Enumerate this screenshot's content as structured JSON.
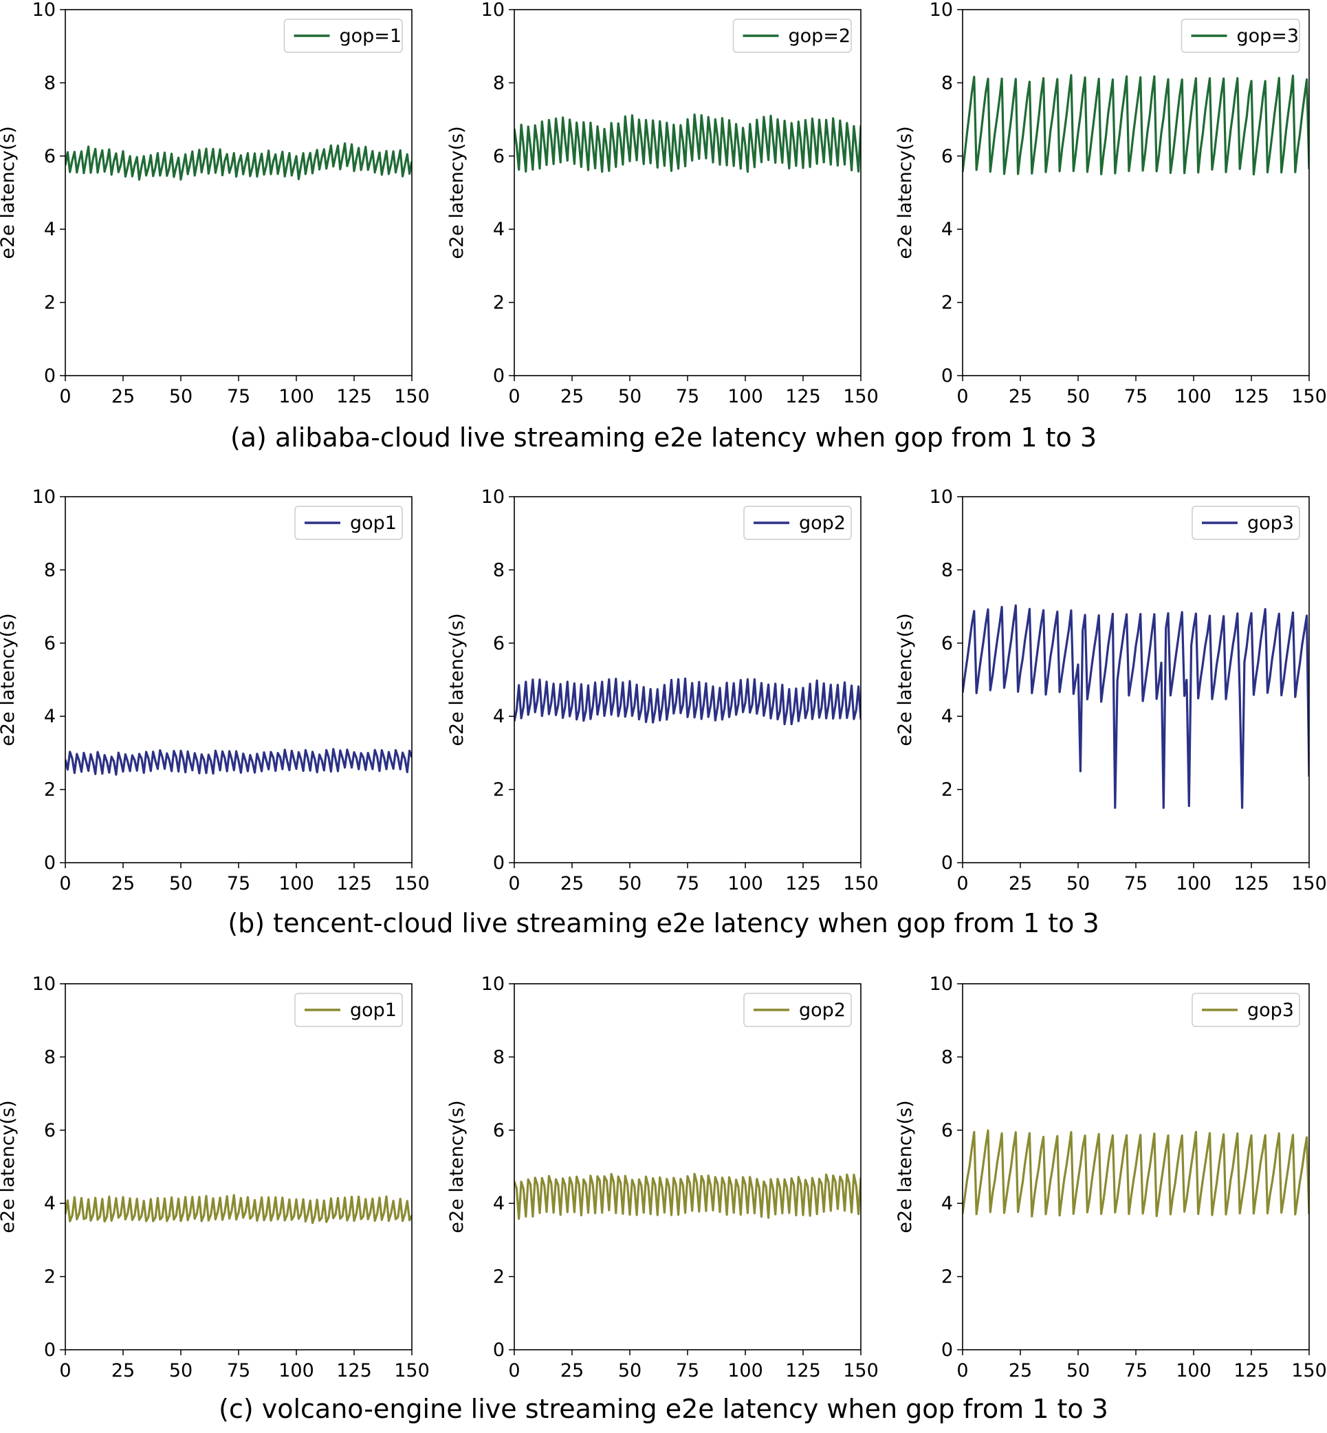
{
  "figure": {
    "captions": [
      "(a) alibaba-cloud live streaming e2e latency when gop from 1 to 3",
      "(b) tencent-cloud live streaming e2e latency when gop from 1 to 3",
      "(c) volcano-engine live streaming e2e latency when gop from 1 to 3"
    ]
  },
  "chart_data": [
    {
      "type": "line",
      "group": "a",
      "title": "",
      "legend": "gop=1",
      "color": "#1f6b35",
      "ylabel": "e2e latency(s)",
      "xlabel": "",
      "xlim": [
        0,
        150
      ],
      "ylim": [
        0,
        10
      ],
      "xticks": [
        0,
        25,
        50,
        75,
        100,
        125,
        150
      ],
      "yticks": [
        0,
        2,
        4,
        6,
        8,
        10
      ],
      "legend_loc": "upper right",
      "x": [
        0,
        10,
        20,
        30,
        40,
        50,
        60,
        70,
        80,
        90,
        100,
        110,
        120,
        130,
        140,
        150
      ],
      "y_mean": [
        5.8,
        5.9,
        5.85,
        5.7,
        5.75,
        5.7,
        5.9,
        5.8,
        5.75,
        5.8,
        5.7,
        5.9,
        6.0,
        5.9,
        5.8,
        5.8
      ],
      "amplitude": 0.35,
      "period": 3
    },
    {
      "type": "line",
      "group": "a",
      "title": "",
      "legend": "gop=2",
      "color": "#1f6b35",
      "ylabel": "e2e latency(s)",
      "xlabel": "",
      "xlim": [
        0,
        150
      ],
      "ylim": [
        0,
        10
      ],
      "xticks": [
        0,
        25,
        50,
        75,
        100,
        125,
        150
      ],
      "yticks": [
        0,
        2,
        4,
        6,
        8,
        10
      ],
      "legend_loc": "upper right",
      "x": [
        0,
        10,
        20,
        30,
        40,
        50,
        60,
        70,
        80,
        90,
        100,
        110,
        120,
        130,
        140,
        150
      ],
      "y_mean": [
        6.2,
        6.3,
        6.5,
        6.3,
        6.2,
        6.5,
        6.4,
        6.2,
        6.6,
        6.4,
        6.2,
        6.5,
        6.3,
        6.4,
        6.4,
        6.2
      ],
      "amplitude": 0.7,
      "period": 3
    },
    {
      "type": "line",
      "group": "a",
      "title": "",
      "legend": "gop=3",
      "color": "#1f6b35",
      "ylabel": "e2e latency(s)",
      "xlabel": "",
      "xlim": [
        0,
        150
      ],
      "ylim": [
        0,
        10
      ],
      "xticks": [
        0,
        25,
        50,
        75,
        100,
        125,
        150
      ],
      "yticks": [
        0,
        2,
        4,
        6,
        8,
        10
      ],
      "legend_loc": "upper right",
      "x": [
        0,
        10,
        20,
        30,
        40,
        50,
        60,
        70,
        80,
        90,
        100,
        110,
        120,
        130,
        140,
        150
      ],
      "y_mean": [
        6.9,
        6.9,
        6.8,
        6.8,
        6.9,
        6.9,
        6.8,
        6.9,
        6.9,
        6.8,
        6.9,
        6.9,
        6.9,
        6.8,
        6.9,
        6.9
      ],
      "amplitude": 1.3,
      "period": 6
    },
    {
      "type": "line",
      "group": "b",
      "title": "",
      "legend": "gop1",
      "color": "#2b3185",
      "ylabel": "e2e latency(s)",
      "xlabel": "",
      "xlim": [
        0,
        150
      ],
      "ylim": [
        0,
        10
      ],
      "xticks": [
        0,
        25,
        50,
        75,
        100,
        125,
        150
      ],
      "yticks": [
        0,
        2,
        4,
        6,
        8,
        10
      ],
      "legend_loc": "upper right",
      "x": [
        0,
        10,
        20,
        30,
        40,
        50,
        60,
        70,
        80,
        90,
        100,
        110,
        120,
        130,
        140,
        150
      ],
      "y_mean": [
        2.8,
        2.75,
        2.7,
        2.75,
        2.8,
        2.8,
        2.75,
        2.8,
        2.75,
        2.8,
        2.8,
        2.75,
        2.85,
        2.8,
        2.8,
        2.8
      ],
      "amplitude": 0.3,
      "period": 3
    },
    {
      "type": "line",
      "group": "b",
      "title": "",
      "legend": "gop2",
      "color": "#2b3185",
      "ylabel": "e2e latency(s)",
      "xlabel": "",
      "xlim": [
        0,
        150
      ],
      "ylim": [
        0,
        10
      ],
      "xticks": [
        0,
        25,
        50,
        75,
        100,
        125,
        150
      ],
      "yticks": [
        0,
        2,
        4,
        6,
        8,
        10
      ],
      "legend_loc": "upper right",
      "x": [
        0,
        10,
        20,
        30,
        40,
        50,
        60,
        70,
        80,
        90,
        100,
        110,
        120,
        130,
        140,
        150
      ],
      "y_mean": [
        4.3,
        4.5,
        4.4,
        4.3,
        4.5,
        4.4,
        4.2,
        4.5,
        4.4,
        4.3,
        4.5,
        4.4,
        4.2,
        4.4,
        4.4,
        4.3
      ],
      "amplitude": 0.55,
      "period": 3
    },
    {
      "type": "line",
      "group": "b",
      "title": "",
      "legend": "gop3",
      "color": "#2b3185",
      "ylabel": "e2e latency(s)",
      "xlabel": "",
      "xlim": [
        0,
        150
      ],
      "ylim": [
        0,
        10
      ],
      "xticks": [
        0,
        25,
        50,
        75,
        100,
        125,
        150
      ],
      "yticks": [
        0,
        2,
        4,
        6,
        8,
        10
      ],
      "legend_loc": "upper right",
      "x": [
        0,
        10,
        20,
        30,
        40,
        50,
        60,
        70,
        80,
        90,
        100,
        110,
        120,
        130,
        140,
        150
      ],
      "y_mean": [
        5.8,
        5.8,
        5.9,
        5.8,
        5.8,
        5.7,
        5.6,
        5.7,
        5.6,
        5.7,
        5.7,
        5.6,
        5.7,
        5.8,
        5.7,
        5.7
      ],
      "amplitude": 1.15,
      "period": 6,
      "dips": [
        {
          "x": 51,
          "y": 2.5
        },
        {
          "x": 66,
          "y": 1.5
        },
        {
          "x": 87,
          "y": 1.5
        },
        {
          "x": 98,
          "y": 1.55
        },
        {
          "x": 121,
          "y": 1.5
        },
        {
          "x": 150,
          "y": 2.35
        }
      ]
    },
    {
      "type": "line",
      "group": "c",
      "title": "",
      "legend": "gop1",
      "color": "#8a8a32",
      "ylabel": "e2e latency(s)",
      "xlabel": "",
      "xlim": [
        0,
        150
      ],
      "ylim": [
        0,
        10
      ],
      "xticks": [
        0,
        25,
        50,
        75,
        100,
        125,
        150
      ],
      "yticks": [
        0,
        2,
        4,
        6,
        8,
        10
      ],
      "legend_loc": "upper right",
      "x": [
        0,
        10,
        20,
        30,
        40,
        50,
        60,
        70,
        80,
        90,
        100,
        110,
        120,
        130,
        140,
        150
      ],
      "y_mean": [
        3.8,
        3.75,
        3.8,
        3.8,
        3.75,
        3.8,
        3.8,
        3.85,
        3.8,
        3.8,
        3.8,
        3.75,
        3.8,
        3.8,
        3.8,
        3.75
      ],
      "amplitude": 0.35,
      "period": 3
    },
    {
      "type": "line",
      "group": "c",
      "title": "",
      "legend": "gop2",
      "color": "#8a8a32",
      "ylabel": "e2e latency(s)",
      "xlabel": "",
      "xlim": [
        0,
        150
      ],
      "ylim": [
        0,
        10
      ],
      "xticks": [
        0,
        25,
        50,
        75,
        100,
        125,
        150
      ],
      "yticks": [
        0,
        2,
        4,
        6,
        8,
        10
      ],
      "legend_loc": "upper right",
      "x": [
        0,
        10,
        20,
        30,
        40,
        50,
        60,
        70,
        80,
        90,
        100,
        110,
        120,
        130,
        140,
        150
      ],
      "y_mean": [
        4.2,
        4.3,
        4.3,
        4.3,
        4.4,
        4.3,
        4.3,
        4.3,
        4.4,
        4.3,
        4.3,
        4.2,
        4.3,
        4.3,
        4.4,
        4.3
      ],
      "amplitude": 0.6,
      "period": 3
    },
    {
      "type": "line",
      "group": "c",
      "title": "",
      "legend": "gop3",
      "color": "#8a8a32",
      "ylabel": "e2e latency(s)",
      "xlabel": "",
      "xlim": [
        0,
        150
      ],
      "ylim": [
        0,
        10
      ],
      "xticks": [
        0,
        25,
        50,
        75,
        100,
        125,
        150
      ],
      "yticks": [
        0,
        2,
        4,
        6,
        8,
        10
      ],
      "legend_loc": "upper right",
      "x": [
        0,
        10,
        20,
        30,
        40,
        50,
        60,
        70,
        80,
        90,
        100,
        110,
        120,
        130,
        140,
        150
      ],
      "y_mean": [
        4.8,
        4.9,
        4.85,
        4.8,
        4.8,
        4.85,
        4.8,
        4.85,
        4.8,
        4.8,
        4.85,
        4.8,
        4.8,
        4.85,
        4.8,
        4.8
      ],
      "amplitude": 1.1,
      "period": 6
    }
  ]
}
